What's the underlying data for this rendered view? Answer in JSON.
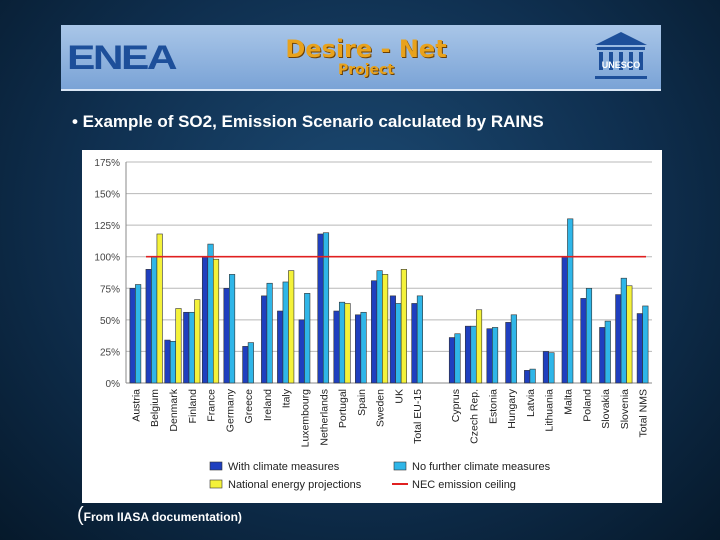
{
  "banner": {
    "left_logo": "ENEA",
    "title": "Desire - Net",
    "subtitle": "Project",
    "right_logo": "UNESCO"
  },
  "slide": {
    "heading": "• Example of SO2, Emission Scenario calculated by RAINS",
    "footer_paren_open": "(",
    "footer_text": "From IIASA documentation)"
  },
  "colors": {
    "with_climate": "#1f3fbf",
    "no_further": "#2fb6e8",
    "national": "#f4f23a",
    "nec": "#e02020"
  },
  "chart_data": {
    "type": "bar",
    "title": "",
    "ylabel": "",
    "xlabel": "",
    "ylim": [
      0,
      175
    ],
    "yticks": [
      0,
      25,
      50,
      75,
      100,
      125,
      150,
      175
    ],
    "ytick_labels": [
      "0%",
      "25%",
      "50%",
      "75%",
      "100%",
      "125%",
      "150%",
      "175%"
    ],
    "grid": true,
    "legend_position": "bottom",
    "categories": [
      "Austria",
      "Belgium",
      "Denmark",
      "Finland",
      "France",
      "Germany",
      "Greece",
      "Ireland",
      "Italy",
      "Luxembourg",
      "Netherlands",
      "Portugal",
      "Spain",
      "Sweden",
      "UK",
      "Total EU-15",
      "",
      "Cyprus",
      "Czech Rep.",
      "Estonia",
      "Hungary",
      "Latvia",
      "Lithuania",
      "Malta",
      "Poland",
      "Slovakia",
      "Slovenia",
      "Total NMS"
    ],
    "series": [
      {
        "name": "With climate measures",
        "color": "#1f3fbf",
        "values": [
          75,
          90,
          34,
          56,
          100,
          75,
          29,
          69,
          57,
          50,
          118,
          57,
          54,
          81,
          69,
          63,
          null,
          36,
          45,
          43,
          48,
          10,
          25,
          100,
          67,
          44,
          70,
          55
        ]
      },
      {
        "name": "No further climate measures",
        "color": "#2fb6e8",
        "values": [
          78,
          100,
          33,
          56,
          110,
          86,
          32,
          79,
          80,
          71,
          119,
          64,
          56,
          89,
          63,
          69,
          null,
          39,
          45,
          44,
          54,
          11,
          24,
          130,
          75,
          49,
          83,
          61
        ]
      },
      {
        "name": "National energy projections",
        "color": "#f4f23a",
        "values": [
          null,
          118,
          59,
          66,
          98,
          null,
          null,
          null,
          89,
          null,
          null,
          63,
          null,
          86,
          90,
          null,
          null,
          null,
          58,
          null,
          null,
          null,
          null,
          null,
          null,
          null,
          77,
          null
        ]
      }
    ],
    "reference_line": {
      "name": "NEC emission ceiling",
      "value": 100,
      "color": "#e02020"
    }
  }
}
